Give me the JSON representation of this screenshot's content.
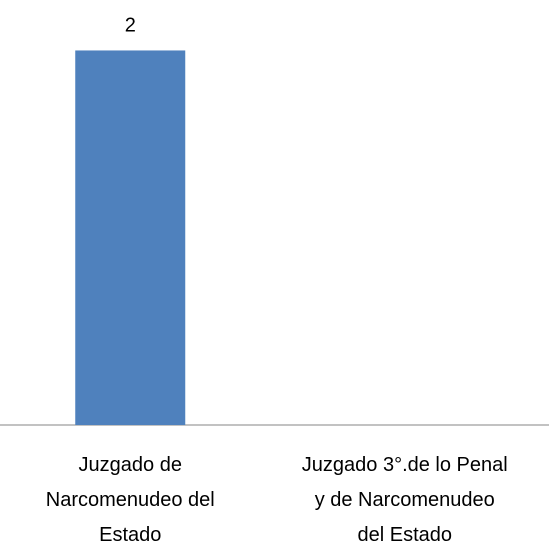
{
  "chart_data": {
    "type": "bar",
    "categories": [
      "Juzgado de\nNarcomenudeo del\nEstado",
      "Juzgado 3°.de lo Penal\ny de Narcomenudeo\ndel Estado"
    ],
    "values": [
      2,
      null
    ],
    "color": "#4f81bd",
    "ylim": [
      0,
      2.2
    ]
  }
}
